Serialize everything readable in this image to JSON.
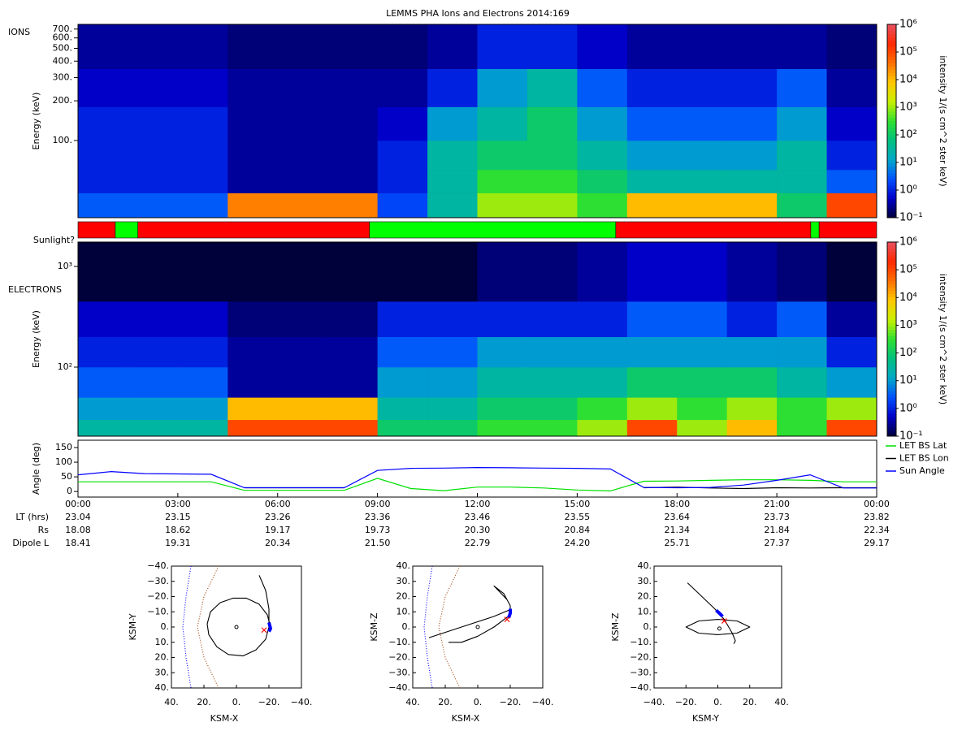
{
  "chart_data": [
    {
      "type": "heatmap",
      "title": "LEMMS PHA Ions and Electrons  2014:169",
      "label": "IONS",
      "ylabel": "Energy (keV)",
      "log_y": true,
      "ylim": [
        26,
        760
      ],
      "yticks": [
        {
          "value": 100,
          "label": "100."
        },
        {
          "value": 200,
          "label": "200."
        },
        {
          "value": 300,
          "label": "300."
        },
        {
          "value": 400,
          "label": "400."
        },
        {
          "value": 500,
          "label": "500."
        },
        {
          "value": 600,
          "label": "600."
        },
        {
          "value": 700,
          "label": "700."
        }
      ],
      "xlim": [
        0,
        24
      ],
      "xbins": [
        0,
        1.5,
        3,
        4.5,
        6,
        7.5,
        9,
        10.5,
        12,
        13.5,
        15,
        16.5,
        18,
        19.5,
        21,
        22.5,
        24
      ],
      "ybins": [
        26,
        40,
        60,
        100,
        180,
        350,
        760
      ],
      "values": [
        [
          3,
          3,
          3,
          30000,
          30000,
          30000,
          2,
          30,
          1000,
          1000,
          300,
          10000,
          10000,
          10000,
          100,
          100000
        ],
        [
          1,
          1,
          1,
          0.3,
          0.3,
          0.3,
          1,
          30,
          300,
          300,
          100,
          30,
          30,
          30,
          30,
          3
        ],
        [
          1,
          1,
          1,
          0.3,
          0.3,
          0.3,
          1,
          30,
          100,
          100,
          30,
          10,
          10,
          10,
          30,
          1
        ],
        [
          1,
          1,
          1,
          0.3,
          0.3,
          0.3,
          0.5,
          10,
          30,
          100,
          10,
          3,
          3,
          3,
          10,
          0.5
        ],
        [
          0.5,
          0.5,
          0.5,
          0.3,
          0.3,
          0.3,
          0.3,
          1,
          10,
          30,
          3,
          1,
          1,
          1,
          3,
          0.3
        ],
        [
          0.3,
          0.3,
          0.3,
          0.2,
          0.2,
          0.2,
          0.2,
          0.3,
          1,
          1,
          0.5,
          0.3,
          0.3,
          0.3,
          0.3,
          0.2
        ]
      ],
      "colormap": [
        "#00003a",
        "#0000c8",
        "#0050ff",
        "#00a8c8",
        "#00c080",
        "#30e030",
        "#c8f000",
        "#ffc800",
        "#ff7000",
        "#ff2800",
        "#e85060"
      ],
      "color_label": "intensity 1/(s cm^2 ster keV)",
      "clim": [
        0.1,
        1000000
      ],
      "cticks": [
        {
          "value": 0.1,
          "label": "10⁻¹"
        },
        {
          "value": 1,
          "label": "10⁰"
        },
        {
          "value": 10,
          "label": "10¹"
        },
        {
          "value": 100,
          "label": "10²"
        },
        {
          "value": 1000,
          "label": "10³"
        },
        {
          "value": 10000,
          "label": "10⁴"
        },
        {
          "value": 100000,
          "label": "10⁵"
        },
        {
          "value": 1000000,
          "label": "10⁶"
        }
      ]
    },
    {
      "type": "timeline",
      "ylabel": "Sunlight?",
      "xlim": [
        0,
        24
      ],
      "segments": [
        {
          "start": 0,
          "end": 1.12,
          "color": "#ff0000"
        },
        {
          "start": 1.12,
          "end": 1.8,
          "color": "#00ff00"
        },
        {
          "start": 1.8,
          "end": 8.76,
          "color": "#ff0000"
        },
        {
          "start": 8.76,
          "end": 16.16,
          "color": "#00ff00"
        },
        {
          "start": 16.16,
          "end": 22.02,
          "color": "#ff0000"
        },
        {
          "start": 22.02,
          "end": 22.27,
          "color": "#00ff00"
        },
        {
          "start": 22.27,
          "end": 24,
          "color": "#ff0000"
        }
      ]
    },
    {
      "type": "heatmap",
      "label": "ELECTRONS",
      "ylabel": "Energy (keV)",
      "log_y": true,
      "ylim": [
        20.6,
        1750
      ],
      "yticks": [
        {
          "value": 100,
          "label": "10²"
        },
        {
          "value": 1000,
          "label": "10³"
        }
      ],
      "xlim": [
        0,
        24
      ],
      "xbins": [
        0,
        1.5,
        3,
        4.5,
        6,
        7.5,
        9,
        10.5,
        12,
        13.5,
        15,
        16.5,
        18,
        19.5,
        21,
        22.5,
        24
      ],
      "ybins": [
        20.6,
        30,
        50,
        100,
        200,
        450,
        1750
      ],
      "values": [
        [
          30,
          30,
          30,
          100000,
          100000,
          100000,
          100,
          100,
          300,
          300,
          1000,
          100000,
          1000,
          10000,
          300,
          100000
        ],
        [
          10,
          10,
          10,
          10000,
          10000,
          10000,
          30,
          30,
          100,
          100,
          300,
          1000,
          300,
          1000,
          300,
          1000
        ],
        [
          3,
          3,
          3,
          0.3,
          0.3,
          0.3,
          10,
          10,
          30,
          30,
          30,
          100,
          100,
          100,
          30,
          10
        ],
        [
          1,
          1,
          1,
          0.3,
          0.3,
          0.3,
          3,
          3,
          10,
          10,
          10,
          10,
          10,
          10,
          10,
          1
        ],
        [
          0.5,
          0.5,
          0.5,
          0.2,
          0.2,
          0.2,
          1,
          1,
          1,
          1,
          1,
          3,
          3,
          1,
          3,
          0.3
        ],
        [
          0.1,
          0.1,
          0.1,
          0.1,
          0.1,
          0.1,
          0.1,
          0.1,
          0.2,
          0.2,
          0.3,
          0.5,
          0.5,
          0.3,
          0.2,
          0.1
        ]
      ],
      "colormap": [
        "#00003a",
        "#0000c8",
        "#0050ff",
        "#00a8c8",
        "#00c080",
        "#30e030",
        "#c8f000",
        "#ffc800",
        "#ff7000",
        "#ff2800",
        "#e85060"
      ],
      "color_label": "intensity 1/(s cm^2 ster keV)",
      "clim": [
        0.1,
        1000000
      ],
      "cticks": [
        {
          "value": 0.1,
          "label": "10⁻¹"
        },
        {
          "value": 1,
          "label": "10⁰"
        },
        {
          "value": 10,
          "label": "10¹"
        },
        {
          "value": 100,
          "label": "10²"
        },
        {
          "value": 1000,
          "label": "10³"
        },
        {
          "value": 10000,
          "label": "10⁴"
        },
        {
          "value": 100000,
          "label": "10⁵"
        },
        {
          "value": 1000000,
          "label": "10⁶"
        }
      ]
    },
    {
      "type": "line",
      "ylabel": "Angle (deg)",
      "xlim": [
        0,
        24
      ],
      "ylim": [
        -19,
        175
      ],
      "yticks": [
        0,
        50,
        100,
        150
      ],
      "xticks": [
        {
          "value": 0,
          "label": "00:00"
        },
        {
          "value": 3,
          "label": "03:00"
        },
        {
          "value": 6,
          "label": "06:00"
        },
        {
          "value": 9,
          "label": "09:00"
        },
        {
          "value": 12,
          "label": "12:00"
        },
        {
          "value": 15,
          "label": "15:00"
        },
        {
          "value": 18,
          "label": "18:00"
        },
        {
          "value": 21,
          "label": "21:00"
        },
        {
          "value": 24,
          "label": "00:00"
        }
      ],
      "x": [
        0,
        1,
        2,
        3,
        4,
        5,
        6,
        7,
        8,
        9,
        10,
        11,
        12,
        13,
        14,
        15,
        16,
        17,
        18,
        19,
        20,
        21,
        22,
        23,
        24
      ],
      "legend": "right",
      "series": [
        {
          "name": "LET BS Lat",
          "color": "#00e000",
          "values": [
            33,
            33,
            33,
            33,
            33,
            4,
            4,
            4,
            4,
            45,
            10,
            3,
            15,
            15,
            12,
            5,
            2,
            35,
            36,
            38,
            40,
            40,
            38,
            33,
            33
          ]
        },
        {
          "name": "LET BS Lon",
          "color": "#000000",
          "values": [
            null,
            null,
            null,
            null,
            null,
            13,
            13,
            13,
            13,
            null,
            null,
            null,
            null,
            null,
            null,
            null,
            null,
            13,
            15,
            12,
            10,
            13,
            12,
            13,
            13
          ]
        },
        {
          "name": "Sun Angle",
          "color": "#0000ff",
          "values": [
            57,
            68,
            61,
            60,
            59,
            13,
            13,
            13,
            13,
            72,
            79,
            80,
            82,
            81,
            80,
            79,
            77,
            14,
            13,
            14,
            22,
            38,
            57,
            12,
            12
          ]
        }
      ]
    },
    {
      "type": "orbit",
      "xlabel": "KSM-X",
      "ylabel": "KSM-Y",
      "xlim": [
        40,
        -40
      ],
      "ylim": [
        40,
        -40
      ],
      "xticks": [
        {
          "value": 40,
          "label": "40."
        },
        {
          "value": 20,
          "label": "20."
        },
        {
          "value": 0,
          "label": "0."
        },
        {
          "value": -20,
          "label": "−20."
        },
        {
          "value": -40,
          "label": "−40."
        }
      ],
      "yticks": [
        {
          "value": -40,
          "label": "−40."
        },
        {
          "value": -30,
          "label": "−30."
        },
        {
          "value": -20,
          "label": "−20."
        },
        {
          "value": -10,
          "label": "−10."
        },
        {
          "value": 0,
          "label": "0."
        },
        {
          "value": 10,
          "label": "10."
        },
        {
          "value": 20,
          "label": "20."
        },
        {
          "value": 30,
          "label": "30."
        },
        {
          "value": 40,
          "label": "40."
        }
      ],
      "series": [
        {
          "color": "#0000ff",
          "style": "dotted",
          "x": [
            28,
            31,
            33,
            31,
            28
          ],
          "y": [
            -40,
            -20,
            0,
            20,
            40
          ]
        },
        {
          "color": "#a0400a",
          "style": "dotted",
          "x": [
            11,
            20,
            24,
            20,
            11
          ],
          "y": [
            -40,
            -20,
            0,
            20,
            40
          ]
        },
        {
          "color": "#000000",
          "style": "solid",
          "x": [
            -14,
            -18,
            -20,
            -20,
            -18,
            -12,
            -4,
            5,
            12,
            17,
            18,
            16,
            10,
            2,
            -6,
            -14,
            -19,
            -21
          ],
          "y": [
            -34,
            -24,
            -12,
            0,
            8,
            15,
            19,
            18,
            13,
            5,
            -2,
            -10,
            -16,
            -19,
            -19,
            -15,
            -8,
            0
          ]
        },
        {
          "color": "#0000ff",
          "style": "thick",
          "x": [
            -20,
            -21,
            -20
          ],
          "y": [
            -3,
            1,
            3
          ]
        },
        {
          "color": "#ff0000",
          "marker": "x",
          "x": [
            -17
          ],
          "y": [
            2
          ]
        },
        {
          "color": "#000000",
          "marker": "circle",
          "x": [
            0
          ],
          "y": [
            0
          ]
        }
      ]
    },
    {
      "type": "orbit",
      "xlabel": "KSM-X",
      "ylabel": "KSM-Z",
      "xlim": [
        40,
        -40
      ],
      "ylim": [
        -40,
        40
      ],
      "xticks": [
        {
          "value": 40,
          "label": "40."
        },
        {
          "value": 20,
          "label": "20."
        },
        {
          "value": 0,
          "label": "0."
        },
        {
          "value": -20,
          "label": "−20."
        },
        {
          "value": -40,
          "label": "−40."
        }
      ],
      "yticks": [
        {
          "value": 40,
          "label": "40."
        },
        {
          "value": 30,
          "label": "30."
        },
        {
          "value": 20,
          "label": "20."
        },
        {
          "value": 10,
          "label": "10."
        },
        {
          "value": 0,
          "label": "0."
        },
        {
          "value": -10,
          "label": "−10."
        },
        {
          "value": -20,
          "label": "−20."
        },
        {
          "value": -30,
          "label": "−30."
        },
        {
          "value": -40,
          "label": "−40."
        }
      ],
      "series": [
        {
          "color": "#0000ff",
          "style": "dotted",
          "x": [
            28,
            31,
            33,
            31,
            28
          ],
          "y": [
            40,
            20,
            0,
            -20,
            -40
          ]
        },
        {
          "color": "#a0400a",
          "style": "dotted",
          "x": [
            11,
            20,
            24,
            20,
            11
          ],
          "y": [
            40,
            20,
            0,
            -20,
            -40
          ]
        },
        {
          "color": "#000000",
          "style": "solid",
          "x": [
            30,
            10,
            -10,
            -19,
            null,
            18,
            10,
            0,
            -10,
            -20,
            -20,
            -16,
            -10,
            -18
          ],
          "y": [
            -7,
            0,
            7,
            11,
            null,
            -10,
            -10,
            -6,
            0,
            8,
            14,
            22,
            27,
            18
          ]
        },
        {
          "color": "#0000ff",
          "style": "thick",
          "x": [
            -19,
            -20,
            -20
          ],
          "y": [
            6,
            9,
            12
          ]
        },
        {
          "color": "#ff0000",
          "marker": "x",
          "x": [
            -18
          ],
          "y": [
            5
          ]
        },
        {
          "color": "#000000",
          "marker": "circle",
          "x": [
            0
          ],
          "y": [
            0
          ]
        }
      ]
    },
    {
      "type": "orbit",
      "xlabel": "KSM-Y",
      "ylabel": "KSM-Z",
      "xlim": [
        -40,
        40
      ],
      "ylim": [
        -40,
        40
      ],
      "xticks": [
        {
          "value": -40,
          "label": "−40."
        },
        {
          "value": -20,
          "label": "−20."
        },
        {
          "value": 0,
          "label": "0."
        },
        {
          "value": 20,
          "label": "20."
        },
        {
          "value": 40,
          "label": "40."
        }
      ],
      "yticks": [
        {
          "value": 40,
          "label": "40."
        },
        {
          "value": 30,
          "label": "30."
        },
        {
          "value": 20,
          "label": "20."
        },
        {
          "value": 10,
          "label": "10."
        },
        {
          "value": 0,
          "label": "0."
        },
        {
          "value": -10,
          "label": "−10."
        },
        {
          "value": -20,
          "label": "−20."
        },
        {
          "value": -30,
          "label": "−30."
        },
        {
          "value": -40,
          "label": "−40."
        }
      ],
      "series": [
        {
          "color": "#000000",
          "style": "solid",
          "x": [
            0,
            12,
            20,
            12,
            0,
            -12,
            -20,
            -12,
            0
          ],
          "y": [
            5,
            4,
            0,
            -4,
            -5,
            -4,
            0,
            4,
            5
          ]
        },
        {
          "color": "#000000",
          "style": "solid",
          "x": [
            -19,
            -10,
            -2,
            4,
            9,
            11,
            10
          ],
          "y": [
            29,
            20,
            12,
            5,
            -4,
            -9,
            -11
          ]
        },
        {
          "color": "#0000ff",
          "style": "thick",
          "x": [
            -1,
            1,
            3
          ],
          "y": [
            11,
            9,
            7
          ]
        },
        {
          "color": "#ff0000",
          "marker": "x",
          "x": [
            4
          ],
          "y": [
            4
          ]
        },
        {
          "color": "#000000",
          "marker": "circle",
          "x": [
            1
          ],
          "y": [
            -1
          ]
        }
      ]
    }
  ],
  "ephemeris": {
    "rows": [
      {
        "label": "LT (hrs)",
        "values": [
          "23.04",
          "23.15",
          "23.26",
          "23.36",
          "23.46",
          "23.55",
          "23.64",
          "23.73",
          "23.82"
        ]
      },
      {
        "label": "Rs",
        "values": [
          "18.08",
          "18.62",
          "19.17",
          "19.73",
          "20.30",
          "20.84",
          "21.34",
          "21.84",
          "22.34"
        ]
      },
      {
        "label": "Dipole L",
        "values": [
          "18.41",
          "19.31",
          "20.34",
          "21.50",
          "22.79",
          "24.20",
          "25.71",
          "27.37",
          "29.17"
        ]
      }
    ]
  }
}
